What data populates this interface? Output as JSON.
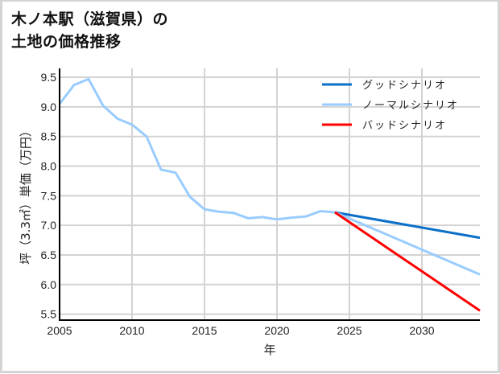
{
  "title_line1": "木ノ本駅（滋賀県）の",
  "title_line2": "土地の価格推移",
  "chart_data": {
    "type": "line",
    "title": "木ノ本駅（滋賀県）の土地の価格推移",
    "xlabel": "年",
    "ylabel": "坪（3.3㎡）単価（万円）",
    "xlim": [
      2005,
      2034
    ],
    "ylim": [
      5.4,
      9.65
    ],
    "x_ticks": [
      "2005",
      "2010",
      "2015",
      "2020",
      "2025",
      "2030"
    ],
    "y_ticks": [
      "5.5",
      "6.0",
      "6.5",
      "7.0",
      "7.5",
      "8.0",
      "8.5",
      "9.0",
      "9.5"
    ],
    "grid": true,
    "legend_position": "upper right",
    "history": {
      "x": [
        2005,
        2006,
        2007,
        2008,
        2009,
        2010,
        2011,
        2012,
        2013,
        2014,
        2015,
        2016,
        2017,
        2018,
        2019,
        2020,
        2021,
        2022,
        2023,
        2024
      ],
      "values": [
        9.05,
        9.37,
        9.47,
        9.02,
        8.8,
        8.7,
        8.5,
        7.94,
        7.89,
        7.48,
        7.27,
        7.23,
        7.21,
        7.12,
        7.14,
        7.1,
        7.13,
        7.15,
        7.24,
        7.22
      ]
    },
    "series": [
      {
        "name": "グッドシナリオ",
        "color": "#0a6fc9",
        "x": [
          2024,
          2034
        ],
        "values": [
          7.22,
          6.79
        ]
      },
      {
        "name": "ノーマルシナリオ",
        "color": "#99ccff",
        "x": [
          2024,
          2034
        ],
        "values": [
          7.22,
          6.17
        ]
      },
      {
        "name": "バッドシナリオ",
        "color": "#ff0000",
        "x": [
          2024,
          2034
        ],
        "values": [
          7.22,
          5.56
        ]
      }
    ]
  }
}
